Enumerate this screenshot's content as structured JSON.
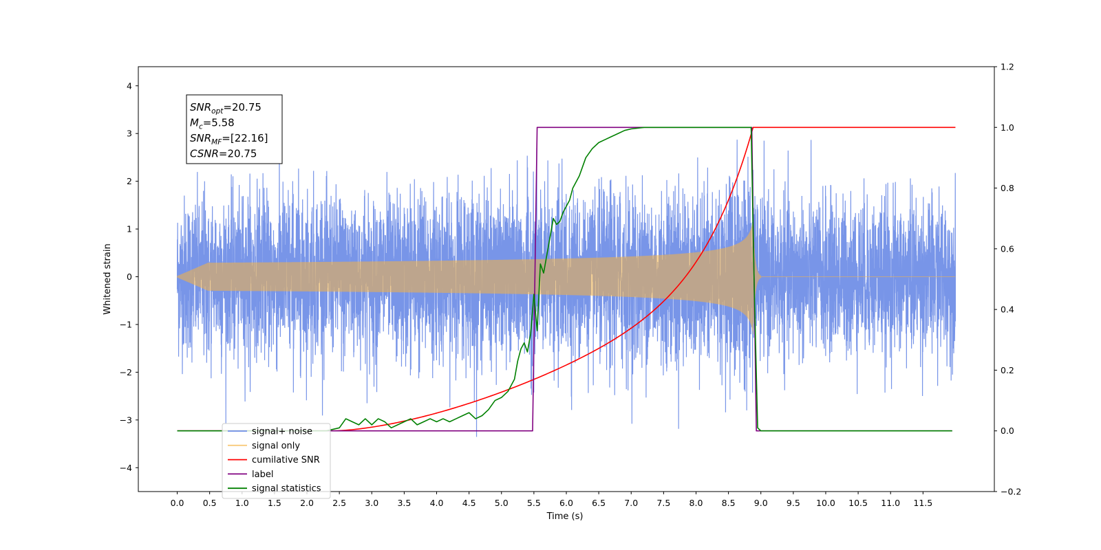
{
  "chart_data": {
    "type": "line",
    "title": "",
    "xlabel": "Time (s)",
    "ylabel": "Whitened strain",
    "y2label": "",
    "xlim": [
      -0.6,
      12.6
    ],
    "ylim": [
      -4.5,
      4.4
    ],
    "y2lim": [
      -0.2,
      1.2
    ],
    "xticks": [
      "0.0",
      "0.5",
      "1.0",
      "1.5",
      "2.0",
      "2.5",
      "3.0",
      "3.5",
      "4.0",
      "4.5",
      "5.0",
      "5.5",
      "6.0",
      "6.5",
      "7.0",
      "7.5",
      "8.0",
      "8.5",
      "9.0",
      "9.5",
      "10.0",
      "10.5",
      "11.0",
      "11.5"
    ],
    "yticks": [
      "−4",
      "−3",
      "−2",
      "−1",
      "0",
      "1",
      "2",
      "3",
      "4"
    ],
    "y2ticks": [
      "−0.2",
      "0.0",
      "0.2",
      "0.4",
      "0.6",
      "0.8",
      "1.0",
      "1.2"
    ],
    "grid": false,
    "legend_position": "lower-left",
    "series": [
      {
        "name": "signal+ noise",
        "color": "#6d8ce6",
        "axis": "left",
        "kind": "noise-with-chirp",
        "x_range": [
          0.0,
          12.0
        ],
        "noise_std": 0.8
      },
      {
        "name": "signal only",
        "color": "#f5b342",
        "axis": "left",
        "kind": "chirp",
        "start": 0.0,
        "merger": 8.88,
        "ringdown_end": 9.0,
        "peak_amplitude": 1.2
      },
      {
        "name": "cumilative SNR",
        "color": "#ff0000",
        "axis": "right",
        "x": [
          0.0,
          2.4,
          3.0,
          3.5,
          4.0,
          4.5,
          5.0,
          5.5,
          6.0,
          6.5,
          7.0,
          7.5,
          8.0,
          8.5,
          8.8,
          8.88,
          8.9,
          12.0
        ],
        "values": [
          0.0,
          0.0,
          0.0,
          0.012,
          0.045,
          0.095,
          0.155,
          0.21,
          0.28,
          0.35,
          0.43,
          0.52,
          0.62,
          0.76,
          0.93,
          1.0,
          1.0,
          1.0
        ]
      },
      {
        "name": "label",
        "color": "#800080",
        "axis": "right",
        "x": [
          0.0,
          5.48,
          5.55,
          8.86,
          8.93,
          11.95
        ],
        "values": [
          0.0,
          0.0,
          1.0,
          1.0,
          0.0,
          0.0
        ]
      },
      {
        "name": "signal statistics",
        "color": "#008000",
        "axis": "right",
        "x": [
          0.0,
          2.3,
          2.5,
          2.6,
          2.7,
          2.8,
          2.9,
          3.0,
          3.1,
          3.2,
          3.3,
          3.4,
          3.5,
          3.6,
          3.7,
          3.8,
          3.9,
          4.0,
          4.1,
          4.2,
          4.3,
          4.4,
          4.5,
          4.6,
          4.7,
          4.8,
          4.9,
          5.0,
          5.1,
          5.2,
          5.25,
          5.3,
          5.35,
          5.4,
          5.45,
          5.5,
          5.55,
          5.6,
          5.65,
          5.7,
          5.75,
          5.8,
          5.85,
          5.9,
          5.95,
          6.0,
          6.05,
          6.1,
          6.2,
          6.3,
          6.4,
          6.5,
          6.6,
          6.7,
          6.8,
          6.9,
          7.0,
          7.2,
          8.0,
          8.85,
          8.9,
          8.95,
          9.0,
          11.95
        ],
        "values": [
          0.0,
          0.0,
          0.01,
          0.04,
          0.03,
          0.02,
          0.04,
          0.02,
          0.04,
          0.03,
          0.01,
          0.02,
          0.03,
          0.04,
          0.02,
          0.03,
          0.04,
          0.03,
          0.04,
          0.03,
          0.04,
          0.05,
          0.06,
          0.04,
          0.05,
          0.07,
          0.1,
          0.11,
          0.13,
          0.17,
          0.23,
          0.27,
          0.29,
          0.26,
          0.32,
          0.45,
          0.33,
          0.55,
          0.52,
          0.58,
          0.64,
          0.7,
          0.68,
          0.69,
          0.72,
          0.74,
          0.76,
          0.8,
          0.84,
          0.9,
          0.93,
          0.95,
          0.96,
          0.97,
          0.98,
          0.99,
          0.995,
          1.0,
          1.0,
          1.0,
          0.45,
          0.01,
          0.0,
          0.0
        ]
      }
    ],
    "annotation": {
      "lines": [
        {
          "base": "SNR",
          "sub": "opt",
          "value": "=20.75"
        },
        {
          "base": "M",
          "sub": "c",
          "value": "=5.58"
        },
        {
          "base": "SNR",
          "sub": "MF",
          "value": "=[22.16]"
        },
        {
          "base": "CSNR",
          "sub": "",
          "value": "=20.75"
        }
      ]
    }
  }
}
